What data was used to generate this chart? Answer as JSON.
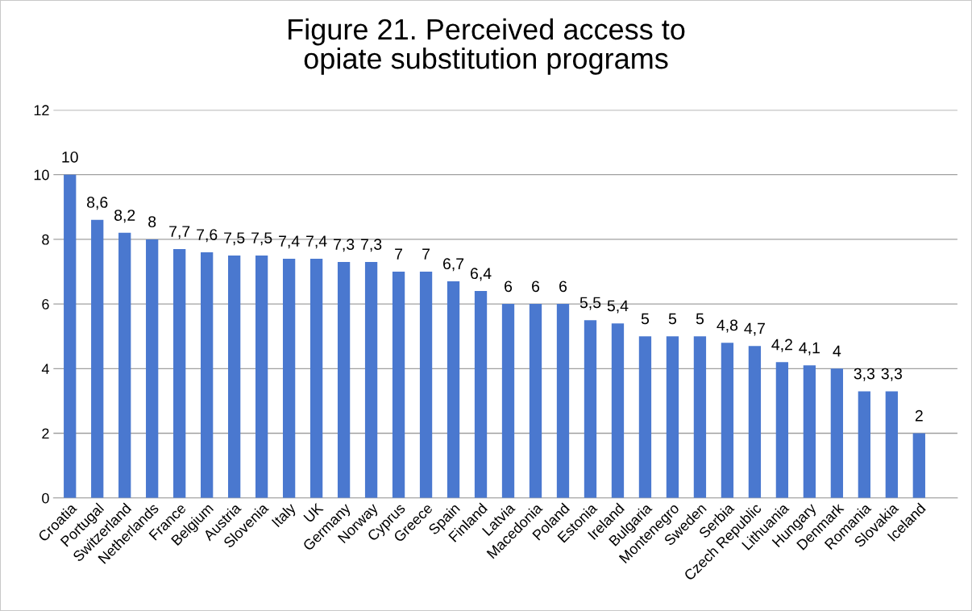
{
  "chart_data": {
    "type": "bar",
    "title": "Figure 21. Perceived access to\nopiate substitution programs",
    "categories": [
      "Croatia",
      "Portugal",
      "Switzerland",
      "Netherlands",
      "France",
      "Belgium",
      "Austria",
      "Slovenia",
      "Italy",
      "UK",
      "Germany",
      "Norway",
      "Cyprus",
      "Greece",
      "Spain",
      "Finland",
      "Latvia",
      "Macedonia",
      "Poland",
      "Estonia",
      "Ireland",
      "Bulgaria",
      "Montenegro",
      "Sweden",
      "Serbia",
      "Czech Republic",
      "Lithuania",
      "Hungary",
      "Denmark",
      "Romania",
      "Slovakia",
      "Iceland"
    ],
    "values": [
      10,
      8.6,
      8.2,
      8,
      7.7,
      7.6,
      7.5,
      7.5,
      7.4,
      7.4,
      7.3,
      7.3,
      7,
      7,
      6.7,
      6.4,
      6,
      6,
      6,
      5.5,
      5.4,
      5,
      5,
      5,
      4.8,
      4.7,
      4.2,
      4.1,
      4,
      3.3,
      3.3,
      2
    ],
    "value_labels": [
      "10",
      "8,6",
      "8,2",
      "8",
      "7,7",
      "7,6",
      "7,5",
      "7,5",
      "7,4",
      "7,4",
      "7,3",
      "7,3",
      "7",
      "7",
      "6,7",
      "6,4",
      "6",
      "6",
      "6",
      "5,5",
      "5,4",
      "5",
      "5",
      "5",
      "4,8",
      "4,7",
      "4,2",
      "4,1",
      "4",
      "3,3",
      "3,3",
      "2"
    ],
    "color": "#4a78cf",
    "ylim": [
      0,
      12
    ],
    "yticks": [
      0,
      2,
      4,
      6,
      8,
      10,
      12
    ],
    "grid": "y",
    "legend": false
  }
}
